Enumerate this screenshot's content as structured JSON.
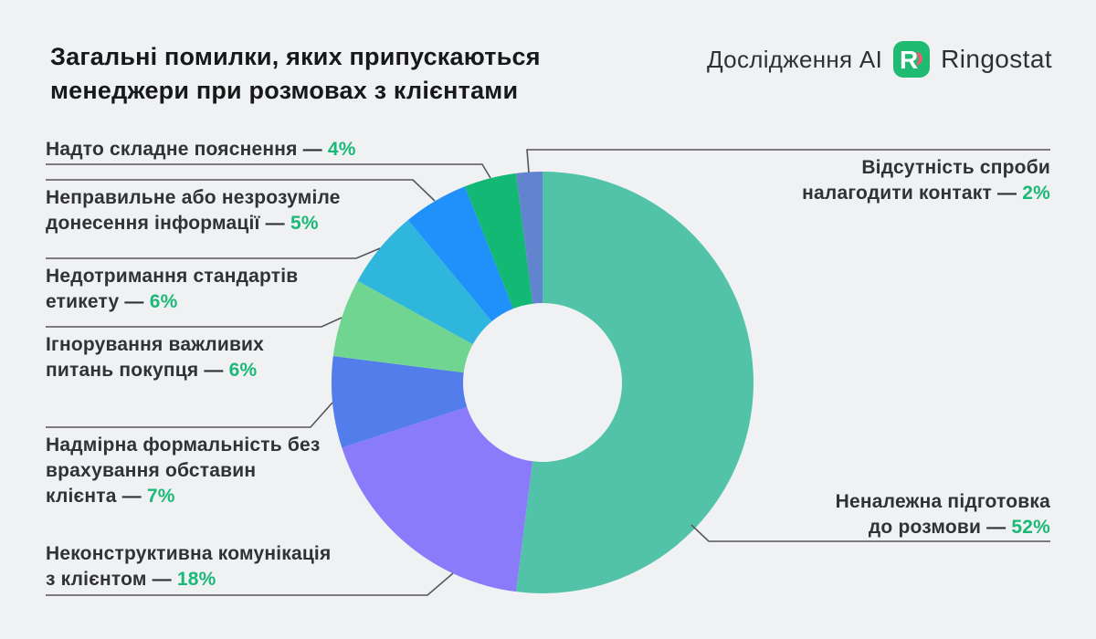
{
  "background_color": "#f0f1f2",
  "accent_green": "#1cb877",
  "leader_line_color": "#55565b",
  "title": {
    "line1": "Загальні помилки, яких припускаються",
    "line2": "менеджери при розмовах з клієнтами"
  },
  "header": {
    "research_label": "Дослідження AI",
    "brand": "Ringostat",
    "logo_color": "#1fbb72",
    "logo_accent_color": "#ef5b6c",
    "logo_letter": "R"
  },
  "callouts": [
    {
      "id": "too-complex-explanation",
      "lines": [
        "Надто складне пояснення —"
      ],
      "pct": "4%"
    },
    {
      "id": "incorrect-unclear-information",
      "lines": [
        "Неправильне або незрозуміле",
        "донесення інформації —"
      ],
      "pct": "5%"
    },
    {
      "id": "etiquette-standards",
      "lines": [
        "Недотримання стандартів",
        "етикету —"
      ],
      "pct": "6%"
    },
    {
      "id": "ignoring-buyer-questions",
      "lines": [
        "Ігнорування важливих",
        "питань покупця —"
      ],
      "pct": "6%"
    },
    {
      "id": "excessive-formality",
      "lines": [
        "Надмірна формальність без",
        "врахування обставин",
        "клієнта —"
      ],
      "pct": "7%"
    },
    {
      "id": "nonconstructive-communication",
      "lines": [
        "Неконструктивна комунікація",
        "з клієнтом —"
      ],
      "pct": "18%"
    },
    {
      "id": "no-contact-attempt",
      "lines": [
        "Відсутність спроби",
        "налагодити контакт —"
      ],
      "pct": "2%"
    },
    {
      "id": "improper-preparation",
      "lines": [
        "Неналежна підготовка",
        "до розмови —"
      ],
      "pct": "52%"
    }
  ],
  "chart_data": {
    "type": "pie",
    "donut": true,
    "title": "Загальні помилки, яких припускаються менеджери при розмовах з клієнтами",
    "unit": "%",
    "start_angle_deg": 0,
    "direction": "clockwise",
    "segments": [
      {
        "id": "improper-preparation",
        "label": "Неналежна підготовка до розмови",
        "value": 52,
        "color": "#52c3a8"
      },
      {
        "id": "nonconstructive-communication",
        "label": "Неконструктивна комунікація з клієнтом",
        "value": 18,
        "color": "#8a7bfa"
      },
      {
        "id": "excessive-formality",
        "label": "Надмірна формальність без врахування обставин клієнта",
        "value": 7,
        "color": "#527deb"
      },
      {
        "id": "ignoring-buyer-questions",
        "label": "Ігнорування важливих питань покупця",
        "value": 6,
        "color": "#6fd590"
      },
      {
        "id": "etiquette-standards",
        "label": "Недотримання стандартів етикету",
        "value": 6,
        "color": "#2fb6dc"
      },
      {
        "id": "incorrect-unclear-information",
        "label": "Неправильне або незрозуміле донесення інформації",
        "value": 5,
        "color": "#2090fa"
      },
      {
        "id": "too-complex-explanation",
        "label": "Надто складне пояснення",
        "value": 4,
        "color": "#12b873"
      },
      {
        "id": "no-contact-attempt",
        "label": "Відсутність спроби налагодити контакт",
        "value": 2,
        "color": "#6283ce"
      }
    ]
  }
}
